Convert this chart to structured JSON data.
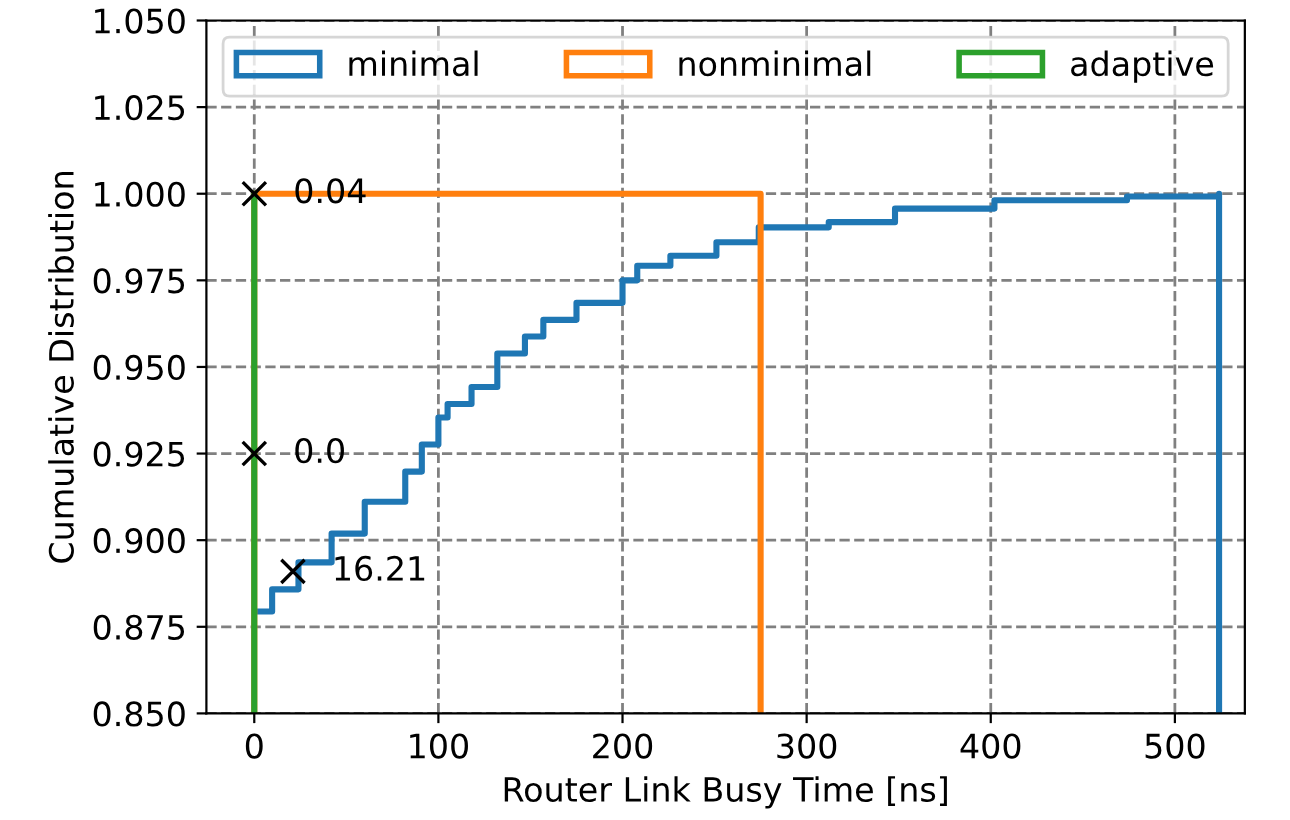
{
  "chart_data": {
    "type": "step",
    "xlabel": "Router Link Busy Time [ns]",
    "ylabel": "Cumulative Distribution",
    "xlim": [
      -26,
      538
    ],
    "ylim": [
      0.85,
      1.05
    ],
    "xticks": [
      0,
      100,
      200,
      300,
      400,
      500
    ],
    "yticks": [
      {
        "value": 0.85,
        "label": "0.850"
      },
      {
        "value": 0.875,
        "label": "0.875"
      },
      {
        "value": 0.9,
        "label": "0.900"
      },
      {
        "value": 0.925,
        "label": "0.925"
      },
      {
        "value": 0.95,
        "label": "0.950"
      },
      {
        "value": 0.975,
        "label": "0.975"
      },
      {
        "value": 1.0,
        "label": "1.000"
      },
      {
        "value": 1.025,
        "label": "1.025"
      },
      {
        "value": 1.05,
        "label": "1.050"
      }
    ],
    "grid": true,
    "legend": "top",
    "line_style": "solid",
    "series": [
      {
        "name": "minimal",
        "color": "#1f77b4",
        "x": [
          2.5,
          9.7,
          24,
          42,
          60,
          82,
          91,
          100,
          105,
          118,
          132,
          147,
          157,
          175,
          200,
          208,
          226,
          251,
          274,
          312,
          348,
          402,
          474,
          524,
          524
        ],
        "values": [
          0.8794,
          0.8858,
          0.8936,
          0.9019,
          0.9111,
          0.9198,
          0.9276,
          0.9354,
          0.9393,
          0.9442,
          0.9539,
          0.9588,
          0.9636,
          0.9685,
          0.975,
          0.9792,
          0.9821,
          0.986,
          0.9903,
          0.9918,
          0.9957,
          0.9981,
          0.9992,
          1.0,
          0.85
        ]
      },
      {
        "name": "nonminimal",
        "color": "#ff7f0e",
        "x": [
          0,
          0,
          275,
          275
        ],
        "values": [
          0.85,
          1.0,
          1.0,
          0.85
        ]
      },
      {
        "name": "adaptive",
        "color": "#2ca02c",
        "x": [
          0,
          0
        ],
        "values": [
          0.85,
          1.0
        ]
      },
      {
        "type": "scatter",
        "marker": "cross",
        "color": "#000000",
        "x": [
          0.04,
          0,
          21
        ],
        "values": [
          1.0,
          0.925,
          0.891
        ]
      }
    ],
    "annotations": [
      {
        "text": "0.04",
        "x": 0.04,
        "y": 1.0
      },
      {
        "text": "0.0",
        "x": 0,
        "y": 0.925
      },
      {
        "text": "16.21",
        "x": 21,
        "y": 0.891
      }
    ]
  }
}
